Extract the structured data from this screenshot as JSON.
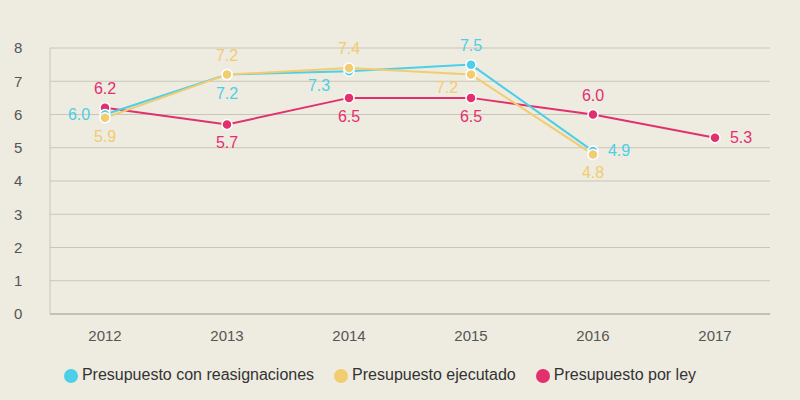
{
  "chart_data": {
    "type": "line",
    "categories": [
      "2012",
      "2013",
      "2014",
      "2015",
      "2016",
      "2017"
    ],
    "series": [
      {
        "name": "Presupuesto por ley",
        "color": "#e2306f",
        "values": [
          6.2,
          5.7,
          6.5,
          6.5,
          6.0,
          5.3
        ],
        "value_labels": [
          "6.2",
          "5.7",
          "6.5",
          "6.5",
          "6.0",
          "5.3"
        ]
      },
      {
        "name": "Presupuesto con reasignaciones",
        "color": "#4ccfe8",
        "values": [
          6.0,
          7.2,
          7.3,
          7.5,
          4.9,
          null
        ],
        "value_labels": [
          "6.0",
          "7.2",
          "7.3",
          "7.5",
          "4.9",
          null
        ]
      },
      {
        "name": "Presupuesto ejecutado",
        "color": "#f2cc70",
        "values": [
          5.9,
          7.2,
          7.4,
          7.2,
          4.8,
          null
        ],
        "value_labels": [
          "5.9",
          "7.2",
          "7.4",
          "7.2",
          "4.8",
          null
        ]
      }
    ],
    "ylim": [
      0,
      8
    ],
    "yticks": [
      0,
      1,
      2,
      3,
      4,
      5,
      6,
      7,
      8
    ],
    "grid": true,
    "data_labels": true,
    "legend": "bottom",
    "marker": "circle"
  }
}
